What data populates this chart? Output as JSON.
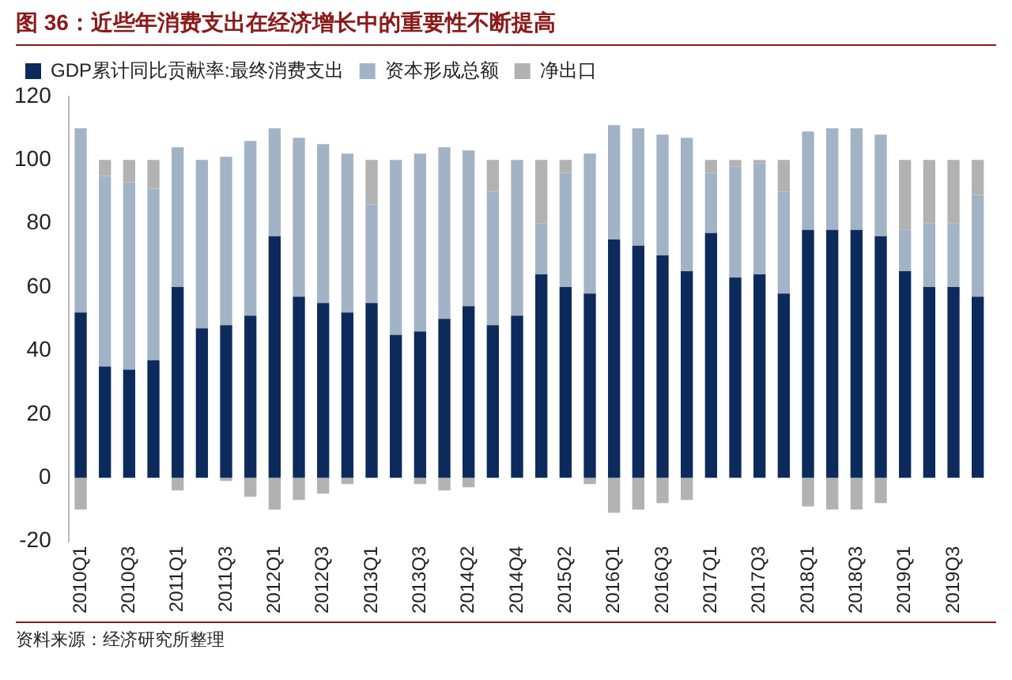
{
  "chart_data": {
    "type": "bar",
    "title": "图 36：近些年消费支出在经济增长中的重要性不断提高",
    "categories": [
      "2010Q1",
      null,
      "2010Q3",
      null,
      "2011Q1",
      null,
      "2011Q3",
      null,
      "2012Q1",
      null,
      "2012Q3",
      null,
      "2013Q1",
      null,
      "2013Q3",
      null,
      "2014Q2",
      null,
      "2014Q4",
      null,
      "2015Q2",
      null,
      "2016Q1",
      null,
      "2016Q3",
      null,
      "2017Q1",
      null,
      "2017Q3",
      null,
      "2018Q1",
      null,
      "2018Q3",
      null,
      "2019Q1",
      null,
      "2019Q3",
      null
    ],
    "series": [
      {
        "name": "GDP累计同比贡献率:最终消费支出",
        "color": "#0c2b5c",
        "values": [
          52,
          35,
          34,
          37,
          60,
          47,
          48,
          51,
          76,
          57,
          55,
          52,
          55,
          45,
          46,
          50,
          54,
          48,
          51,
          64,
          60,
          58,
          75,
          73,
          70,
          65,
          77,
          63,
          64,
          58,
          78,
          78,
          78,
          76,
          65,
          60,
          60,
          57
        ]
      },
      {
        "name": "资本形成总额",
        "color": "#a3b3c6",
        "values": [
          58,
          60,
          59,
          54,
          44,
          53,
          53,
          55,
          34,
          50,
          50,
          50,
          31,
          55,
          56,
          54,
          49,
          42,
          49,
          16,
          36,
          44,
          36,
          37,
          38,
          42,
          19,
          35,
          35,
          32,
          31,
          32,
          32,
          32,
          13,
          20,
          20,
          32
        ]
      },
      {
        "name": "净出口",
        "color": "#b2b2b2",
        "values": [
          -10,
          5,
          7,
          9,
          -4,
          0,
          -1,
          -6,
          -10,
          -7,
          -5,
          -2,
          14,
          0,
          -2,
          -4,
          -3,
          10,
          0,
          20,
          4,
          -2,
          -11,
          -10,
          -8,
          -7,
          4,
          2,
          1,
          10,
          -9,
          -10,
          -10,
          -8,
          22,
          20,
          20,
          11
        ]
      }
    ],
    "stacked": true,
    "ylim": [
      -20,
      120
    ],
    "yticks": [
      -20,
      0,
      20,
      40,
      60,
      80,
      100,
      120
    ],
    "legend": "top",
    "annotations": [
      "资料来源：经济研究所整理"
    ]
  }
}
